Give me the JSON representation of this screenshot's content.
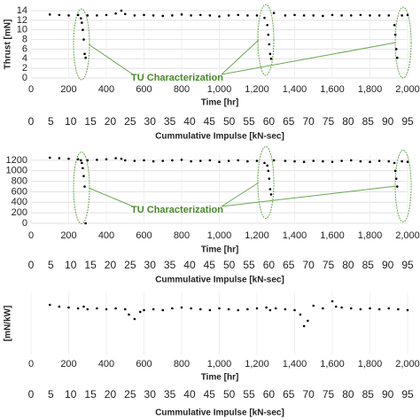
{
  "chart_data": [
    {
      "type": "scatter",
      "y_label": "Thrust [mN]",
      "x_label": "Time [hr]",
      "x2_label": "Cummulative Impulse [kN-sec]",
      "annotation": "TU Characterization",
      "color": "#000000",
      "grid": true,
      "x": [
        100,
        150,
        200,
        250,
        265,
        270,
        275,
        280,
        285,
        290,
        300,
        350,
        400,
        450,
        480,
        500,
        550,
        600,
        650,
        700,
        750,
        800,
        850,
        900,
        950,
        1000,
        1050,
        1100,
        1150,
        1200,
        1240,
        1255,
        1260,
        1265,
        1270,
        1275,
        1290,
        1350,
        1400,
        1450,
        1500,
        1550,
        1600,
        1650,
        1700,
        1750,
        1800,
        1850,
        1900,
        1930,
        1935,
        1940,
        1945,
        1970,
        2000
      ],
      "values": [
        13.2,
        13.1,
        13.0,
        13.1,
        12.4,
        11.5,
        10,
        8,
        5,
        4.2,
        13,
        13,
        13.1,
        13.4,
        14,
        13.3,
        13,
        13.1,
        13,
        12.9,
        13,
        13.2,
        13,
        13.1,
        13,
        12.8,
        13,
        13.1,
        13,
        13,
        12.5,
        11,
        9,
        7,
        5,
        4,
        13.5,
        13,
        13.1,
        13,
        13,
        12.9,
        13.1,
        13,
        13,
        13.1,
        13,
        13,
        13,
        11,
        9,
        6,
        4.2,
        13,
        13.1
      ],
      "xlim": [
        0,
        2000
      ],
      "xticks": [
        0,
        200,
        400,
        600,
        800,
        {
          "value": 1000,
          "label": "1,000"
        },
        {
          "value": 1200,
          "label": "1,200"
        },
        {
          "value": 1400,
          "label": "1,400"
        },
        {
          "value": 1600,
          "label": "1,600"
        },
        {
          "value": 1800,
          "label": "1,800"
        },
        {
          "value": 2000,
          "label": "2,000"
        }
      ],
      "x2lim": [
        0,
        95
      ],
      "x2ticks": [
        0,
        5,
        10,
        15,
        20,
        25,
        30,
        35,
        40,
        45,
        50,
        55,
        60,
        65,
        70,
        75,
        80,
        85,
        90,
        95
      ],
      "ylim": [
        0,
        14
      ],
      "yticks": [
        0,
        2,
        4,
        6,
        8,
        10,
        12,
        14
      ]
    },
    {
      "type": "scatter",
      "x_label": "Time [hr]",
      "x2_label": "Cummulative Impulse [kN-sec]",
      "annotation": "TU Characterization",
      "color": "#000000",
      "grid": true,
      "x": [
        100,
        150,
        200,
        250,
        265,
        270,
        275,
        280,
        285,
        290,
        300,
        350,
        400,
        450,
        480,
        500,
        550,
        600,
        650,
        700,
        750,
        800,
        850,
        900,
        950,
        1000,
        1050,
        1100,
        1150,
        1200,
        1240,
        1255,
        1260,
        1265,
        1270,
        1275,
        1290,
        1350,
        1400,
        1450,
        1500,
        1550,
        1600,
        1650,
        1700,
        1750,
        1800,
        1850,
        1900,
        1930,
        1935,
        1940,
        1945,
        1970,
        2000
      ],
      "values": [
        1250,
        1240,
        1230,
        1220,
        1200,
        1150,
        1050,
        900,
        700,
        0,
        1200,
        1210,
        1220,
        1240,
        1230,
        1200,
        1190,
        1200,
        1180,
        1190,
        1200,
        1210,
        1180,
        1190,
        1200,
        1170,
        1190,
        1200,
        1180,
        1190,
        1150,
        1100,
        1000,
        850,
        650,
        550,
        1200,
        1190,
        1180,
        1170,
        1190,
        1180,
        1170,
        1190,
        1200,
        1180,
        1170,
        1190,
        1180,
        1150,
        1000,
        850,
        700,
        1180,
        1170
      ],
      "xlim": [
        0,
        2000
      ],
      "xticks": [
        0,
        200,
        400,
        600,
        800,
        {
          "value": 1000,
          "label": "1,000"
        },
        {
          "value": 1200,
          "label": "1,200"
        },
        {
          "value": 1400,
          "label": "1,400"
        },
        {
          "value": 1600,
          "label": "1,600"
        },
        {
          "value": 1800,
          "label": "1,800"
        },
        {
          "value": 2000,
          "label": "2,000"
        }
      ],
      "x2lim": [
        0,
        95
      ],
      "x2ticks": [
        0,
        5,
        10,
        15,
        20,
        25,
        30,
        35,
        40,
        45,
        50,
        55,
        60,
        65,
        70,
        75,
        80,
        85,
        90,
        95
      ],
      "ylim": [
        0,
        1300
      ],
      "yticks": [
        0,
        200,
        400,
        600,
        800,
        1000,
        1200
      ]
    },
    {
      "type": "scatter",
      "y_label": "[mN/kW]",
      "x_label": "Time [hr]",
      "x2_label": "Cummulative Impulse [kN-sec]",
      "color": "#000000",
      "grid": true,
      "x": [
        100,
        150,
        200,
        250,
        280,
        300,
        350,
        400,
        450,
        500,
        520,
        550,
        580,
        600,
        650,
        700,
        750,
        800,
        850,
        900,
        950,
        1000,
        1050,
        1100,
        1150,
        1200,
        1250,
        1270,
        1300,
        1350,
        1400,
        1430,
        1450,
        1470,
        1500,
        1550,
        1600,
        1620,
        1650,
        1700,
        1750,
        1800,
        1850,
        1900,
        1950,
        2000
      ],
      "values": [
        56,
        54,
        53,
        52,
        54,
        51,
        52,
        51,
        52,
        51,
        45,
        40,
        48,
        50,
        51,
        50,
        52,
        53,
        52,
        51,
        50,
        52,
        51,
        50,
        51,
        52,
        53,
        50,
        52,
        51,
        50,
        45,
        32,
        38,
        55,
        52,
        60,
        54,
        53,
        52,
        51,
        52,
        51,
        52,
        51,
        50
      ],
      "xlim": [
        0,
        2000
      ],
      "xticks": [
        0,
        200,
        400,
        600,
        800,
        {
          "value": 1000,
          "label": "1,000"
        },
        {
          "value": 1200,
          "label": "1,200"
        },
        {
          "value": 1400,
          "label": "1,400"
        },
        {
          "value": 1600,
          "label": "1,600"
        },
        {
          "value": 1800,
          "label": "1,800"
        },
        {
          "value": 2000,
          "label": "2,000"
        }
      ],
      "x2lim": [
        0,
        95
      ],
      "x2ticks": [
        0,
        5,
        10,
        15,
        20,
        25,
        30,
        35,
        40,
        45,
        50,
        55,
        60,
        65,
        70,
        75,
        80,
        85,
        90,
        95
      ],
      "ylim": [
        0,
        70
      ]
    }
  ]
}
